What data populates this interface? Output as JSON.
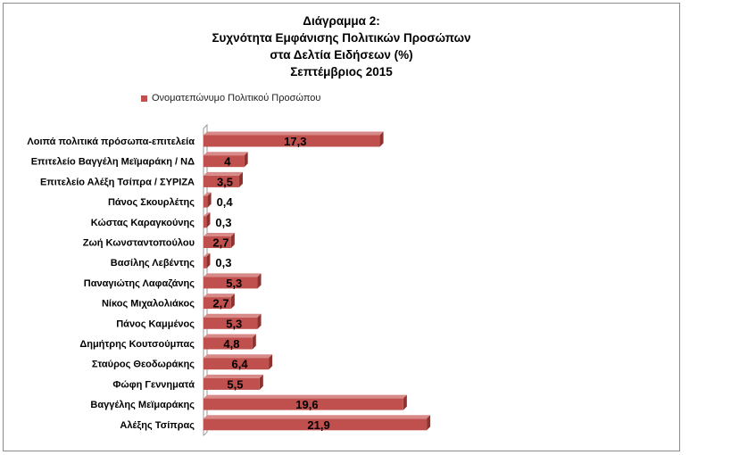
{
  "chart_data": {
    "type": "bar",
    "orientation": "horizontal",
    "title": [
      "Διάγραμμα 2:",
      "Συχνότητα Εμφάνισης Πολιτικών Προσώπων",
      "στα Δελτία Ειδήσεων (%)",
      "Σεπτέμβριος 2015"
    ],
    "legend": {
      "label": "Ονοματεπώνυμο Πολιτικού Προσώπου",
      "position": "top"
    },
    "categories": [
      "Λοιπά πολιτικά πρόσωπα-επιτελεία",
      "Επιτελείο Βαγγέλη  Μεϊμαράκη / ΝΔ",
      "Επιτελείο Αλέξη Τσίπρα / ΣΥΡΙΖΑ",
      "Πάνος Σκουρλέτης",
      "Κώστας Καραγκούνης",
      "Ζωή Κωνσταντοπούλου",
      "Βασίλης Λεβέντης",
      "Παναγιώτης Λαφαζάνης",
      "Νίκος Μιχαλολιάκος",
      "Πάνος Καμμένος",
      "Δημήτρης Κουτσούμπας",
      "Σταύρος Θεοδωράκης",
      "Φώφη Γεννηματά",
      "Βαγγέλης Μεϊμαράκης",
      "Αλέξης Τσίπρας"
    ],
    "values": [
      17.3,
      4,
      3.5,
      0.4,
      0.3,
      2.7,
      0.3,
      5.3,
      2.7,
      5.3,
      4.8,
      6.4,
      5.5,
      19.6,
      21.9
    ],
    "labels": [
      "17,3",
      "4",
      "3,5",
      "0,4",
      "0,3",
      "2,7",
      "0,3",
      "5,3",
      "2,7",
      "5,3",
      "4,8",
      "6,4",
      "5,5",
      "19,6",
      "21,9"
    ],
    "xlim": [
      0,
      22
    ],
    "grid": false,
    "color": "#c0504d"
  }
}
